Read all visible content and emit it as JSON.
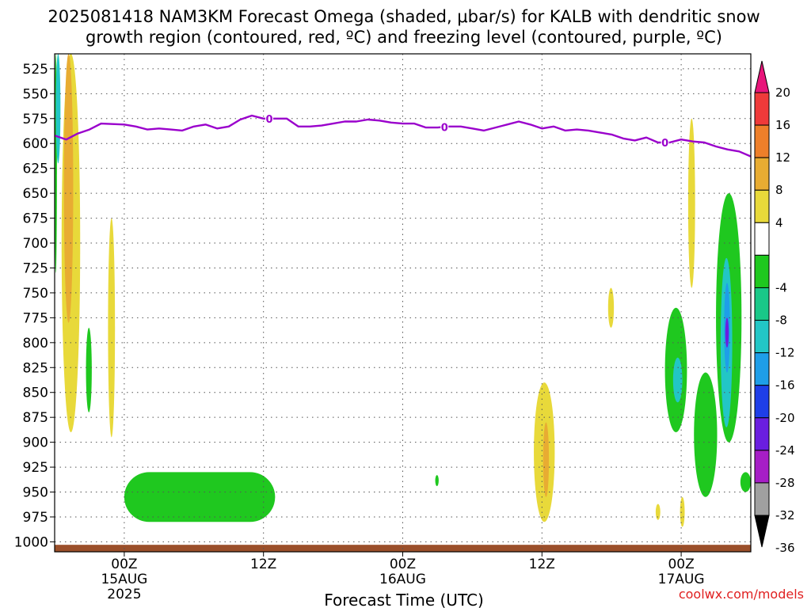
{
  "chart_data": {
    "type": "heatmap",
    "title_line1": "2025081418 NAM3KM Forecast Omega (shaded, μbar/s) for KALB with dendritic snow",
    "title_line2": "growth region (contoured, red, ºC) and freezing level (contoured, purple, ºC)",
    "xlabel": "Forecast Time (UTC)",
    "watermark": "coolwx.com/models",
    "x_range_hours": [
      -6,
      54
    ],
    "x_ticks": [
      {
        "hour": 0,
        "lines": [
          "00Z",
          "15AUG",
          "2025"
        ]
      },
      {
        "hour": 12,
        "lines": [
          "12Z"
        ]
      },
      {
        "hour": 24,
        "lines": [
          "00Z",
          "16AUG"
        ]
      },
      {
        "hour": 36,
        "lines": [
          "12Z"
        ]
      },
      {
        "hour": 48,
        "lines": [
          "00Z",
          "17AUG"
        ]
      }
    ],
    "y_axis": {
      "unit": "hPa",
      "range": [
        1010,
        510
      ],
      "reversed": true,
      "ticks": [
        525,
        550,
        575,
        600,
        625,
        650,
        675,
        700,
        725,
        750,
        775,
        800,
        825,
        850,
        875,
        900,
        925,
        950,
        975,
        1000
      ]
    },
    "grid": true,
    "colorbar": {
      "labels": [
        "20",
        "16",
        "12",
        "8",
        "4",
        "-4",
        "-8",
        "-12",
        "-16",
        "-20",
        "-24",
        "-28",
        "-32",
        "-36"
      ],
      "bins": [
        {
          "range": ">20",
          "color": "#e8157a"
        },
        {
          "range": "16 to 20",
          "color": "#ef3a3a"
        },
        {
          "range": "12 to 16",
          "color": "#ee7f2a"
        },
        {
          "range": "8 to 12",
          "color": "#e8ac32"
        },
        {
          "range": "4 to 8",
          "color": "#e8d93a"
        },
        {
          "range": "-4 to 4",
          "color": "#ffffff"
        },
        {
          "range": "-8 to -4",
          "color": "#1fc81f"
        },
        {
          "range": "-12 to -8",
          "color": "#19c888"
        },
        {
          "range": "-16 to -12",
          "color": "#22c6c6"
        },
        {
          "range": "-20 to -16",
          "color": "#1e9ee8"
        },
        {
          "range": "-24 to -20",
          "color": "#1e3ee8"
        },
        {
          "range": "-28 to -24",
          "color": "#6a1ee0"
        },
        {
          "range": "-32 to -28",
          "color": "#a61ec6"
        },
        {
          "range": "-36 to -32",
          "color": "#a0a0a0"
        },
        {
          "range": "<-36",
          "color": "#000000"
        }
      ]
    },
    "freezing_level": {
      "name": "0",
      "color": "#9a00cc",
      "label_hours": [
        12.5,
        27.6,
        46.6
      ],
      "points": [
        [
          -6,
          592
        ],
        [
          -5,
          596
        ],
        [
          -4,
          590
        ],
        [
          -3,
          586
        ],
        [
          -2,
          580
        ],
        [
          0,
          581
        ],
        [
          1,
          583
        ],
        [
          2,
          586
        ],
        [
          3,
          585
        ],
        [
          4,
          586
        ],
        [
          5,
          587
        ],
        [
          6,
          583
        ],
        [
          7,
          581
        ],
        [
          8,
          585
        ],
        [
          9,
          583
        ],
        [
          10,
          576
        ],
        [
          11,
          572
        ],
        [
          12,
          575
        ],
        [
          13,
          575
        ],
        [
          14,
          575
        ],
        [
          15,
          583
        ],
        [
          16,
          583
        ],
        [
          17,
          582
        ],
        [
          18,
          580
        ],
        [
          19,
          578
        ],
        [
          20,
          578
        ],
        [
          21,
          576
        ],
        [
          22,
          577
        ],
        [
          23,
          579
        ],
        [
          24,
          580
        ],
        [
          25,
          580
        ],
        [
          26,
          584
        ],
        [
          27,
          584
        ],
        [
          28,
          583
        ],
        [
          29,
          583
        ],
        [
          30,
          585
        ],
        [
          31,
          587
        ],
        [
          32,
          584
        ],
        [
          33,
          581
        ],
        [
          34,
          578
        ],
        [
          35,
          581
        ],
        [
          36,
          585
        ],
        [
          37,
          583
        ],
        [
          38,
          587
        ],
        [
          39,
          586
        ],
        [
          40,
          587
        ],
        [
          41,
          589
        ],
        [
          42,
          591
        ],
        [
          43,
          595
        ],
        [
          44,
          597
        ],
        [
          45,
          594
        ],
        [
          46,
          599
        ],
        [
          47,
          599
        ],
        [
          48,
          596
        ],
        [
          49,
          598
        ],
        [
          50,
          599
        ],
        [
          51,
          603
        ],
        [
          52,
          606
        ],
        [
          53,
          608
        ],
        [
          54,
          613
        ]
      ]
    },
    "terrain": {
      "color": "#9b4f2a",
      "surface_pressure_hpa": 1003
    },
    "omega_regions": [
      {
        "color": "#e8d93a",
        "bounds": {
          "t": [
            -5.4,
            -3.8
          ],
          "p": [
            510,
            890
          ]
        }
      },
      {
        "color": "#e8ac32",
        "bounds": {
          "t": [
            -5.2,
            -4.4
          ],
          "p": [
            510,
            780
          ]
        }
      },
      {
        "color": "#1fc81f",
        "bounds": {
          "t": [
            -6,
            -5.8
          ],
          "p": [
            510,
            730
          ]
        }
      },
      {
        "color": "#22c6c6",
        "bounds": {
          "t": [
            -5.9,
            -5.5
          ],
          "p": [
            510,
            620
          ]
        }
      },
      {
        "color": "#e8d93a",
        "bounds": {
          "t": [
            -1.4,
            -0.8
          ],
          "p": [
            675,
            895
          ]
        }
      },
      {
        "color": "#1fc81f",
        "bounds": {
          "t": [
            -3.3,
            -2.8
          ],
          "p": [
            785,
            870
          ]
        }
      },
      {
        "color": "#1fc81f",
        "bounds": {
          "t": [
            0,
            13
          ],
          "p": [
            930,
            980
          ]
        }
      },
      {
        "color": "#1fc81f",
        "bounds": {
          "t": [
            26.8,
            27.1
          ],
          "p": [
            933,
            944
          ]
        }
      },
      {
        "color": "#e8d93a",
        "bounds": {
          "t": [
            35.3,
            37.1
          ],
          "p": [
            840,
            980
          ]
        }
      },
      {
        "color": "#e8ac32",
        "bounds": {
          "t": [
            36.1,
            36.6
          ],
          "p": [
            880,
            955
          ]
        }
      },
      {
        "color": "#e8d93a",
        "bounds": {
          "t": [
            41.7,
            42.2
          ],
          "p": [
            745,
            785
          ]
        }
      },
      {
        "color": "#e8d93a",
        "bounds": {
          "t": [
            48.6,
            49.2
          ],
          "p": [
            575,
            745
          ]
        }
      },
      {
        "color": "#1fc81f",
        "bounds": {
          "t": [
            46.6,
            48.5
          ],
          "p": [
            765,
            890
          ]
        }
      },
      {
        "color": "#22c6c6",
        "bounds": {
          "t": [
            47.3,
            48.1
          ],
          "p": [
            815,
            860
          ]
        }
      },
      {
        "color": "#1fc81f",
        "bounds": {
          "t": [
            49.1,
            51.1
          ],
          "p": [
            830,
            955
          ]
        }
      },
      {
        "color": "#1fc81f",
        "bounds": {
          "t": [
            51,
            53.2
          ],
          "p": [
            650,
            900
          ]
        }
      },
      {
        "color": "#22c6c6",
        "bounds": {
          "t": [
            51.4,
            52.4
          ],
          "p": [
            715,
            885
          ]
        }
      },
      {
        "color": "#1e9ee8",
        "bounds": {
          "t": [
            51.7,
            52.2
          ],
          "p": [
            740,
            830
          ]
        }
      },
      {
        "color": "#6a1ee0",
        "bounds": {
          "t": [
            51.8,
            52.1
          ],
          "p": [
            775,
            805
          ]
        }
      },
      {
        "color": "#1fc81f",
        "bounds": {
          "t": [
            53.1,
            54
          ],
          "p": [
            930,
            950
          ]
        }
      },
      {
        "color": "#e8d93a",
        "bounds": {
          "t": [
            45.8,
            46.2
          ],
          "p": [
            962,
            978
          ]
        }
      },
      {
        "color": "#e8d93a",
        "bounds": {
          "t": [
            47.9,
            48.3
          ],
          "p": [
            955,
            985
          ]
        }
      }
    ]
  }
}
